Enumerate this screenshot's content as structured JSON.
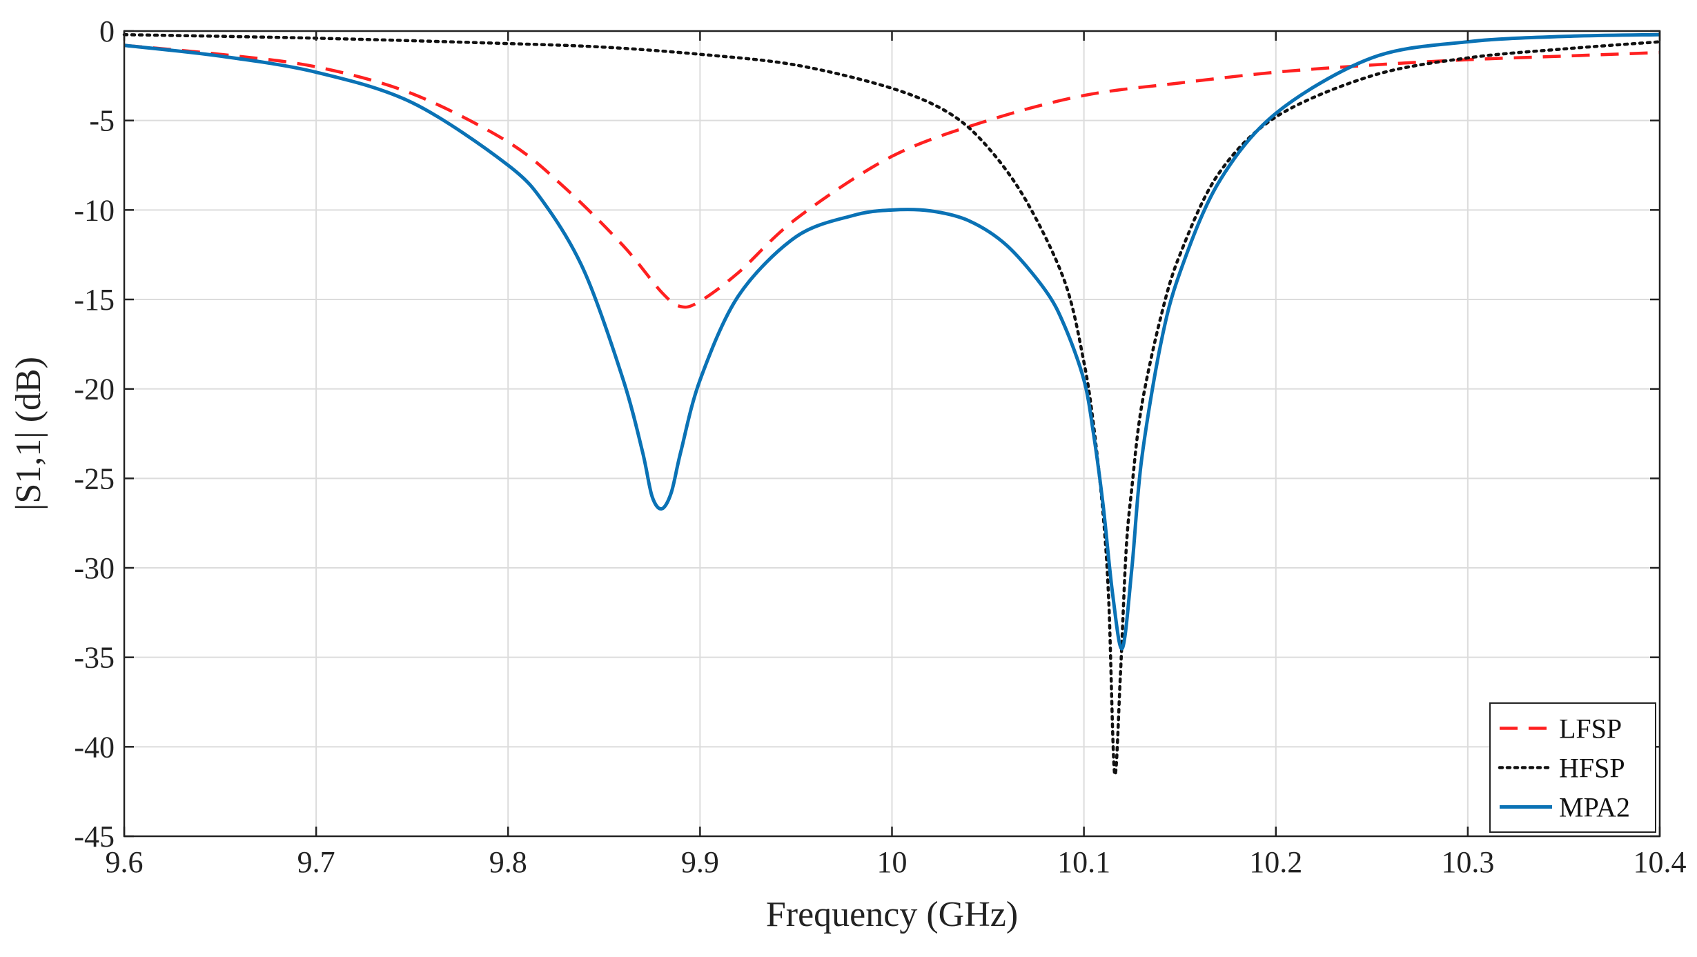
{
  "chart_data": {
    "type": "line",
    "title": "",
    "xlabel": "Frequency (GHz)",
    "ylabel": "|S1,1| (dB)",
    "xlim": [
      9.6,
      10.4
    ],
    "ylim": [
      -45,
      0
    ],
    "xticks": [
      9.6,
      9.7,
      9.8,
      9.9,
      10.0,
      10.1,
      10.2,
      10.3,
      10.4
    ],
    "xtick_labels": [
      "9.6",
      "9.7",
      "9.8",
      "9.9",
      "10",
      "10.1",
      "10.2",
      "10.3",
      "10.4"
    ],
    "yticks": [
      0,
      -5,
      -10,
      -15,
      -20,
      -25,
      -30,
      -35,
      -40,
      -45
    ],
    "ytick_labels": [
      "0",
      "-5",
      "-10",
      "-15",
      "-20",
      "-25",
      "-30",
      "-35",
      "-40",
      "-45"
    ],
    "grid": true,
    "legend_position": "bottom-right",
    "series": [
      {
        "name": "LFSP",
        "color": "#ff2020",
        "style": "dashed",
        "x": [
          9.6,
          9.65,
          9.7,
          9.75,
          9.8,
          9.83,
          9.86,
          9.88,
          9.89,
          9.9,
          9.92,
          9.95,
          10.0,
          10.05,
          10.1,
          10.15,
          10.2,
          10.25,
          10.3,
          10.35,
          10.4
        ],
        "y": [
          -0.8,
          -1.3,
          -2.0,
          -3.5,
          -6.2,
          -8.8,
          -12.0,
          -14.6,
          -15.4,
          -15.1,
          -13.5,
          -10.5,
          -7.0,
          -5.0,
          -3.6,
          -2.9,
          -2.3,
          -1.9,
          -1.6,
          -1.4,
          -1.2
        ]
      },
      {
        "name": "HFSP",
        "color": "#111111",
        "style": "dotted",
        "x": [
          9.6,
          9.7,
          9.8,
          9.85,
          9.9,
          9.95,
          10.0,
          10.03,
          10.05,
          10.07,
          10.09,
          10.1,
          10.105,
          10.11,
          10.113,
          10.116,
          10.119,
          10.122,
          10.125,
          10.13,
          10.14,
          10.15,
          10.17,
          10.2,
          10.25,
          10.3,
          10.35,
          10.4
        ],
        "y": [
          -0.2,
          -0.4,
          -0.7,
          -0.9,
          -1.3,
          -1.9,
          -3.2,
          -4.6,
          -6.5,
          -9.5,
          -14.0,
          -18.5,
          -22.0,
          -27.0,
          -32.0,
          -41.5,
          -36.0,
          -29.0,
          -25.5,
          -21.0,
          -16.0,
          -12.5,
          -8.0,
          -4.8,
          -2.5,
          -1.5,
          -1.0,
          -0.6
        ]
      },
      {
        "name": "MPA2",
        "color": "#0a72b5",
        "style": "solid",
        "x": [
          9.6,
          9.65,
          9.7,
          9.75,
          9.8,
          9.82,
          9.84,
          9.86,
          9.87,
          9.875,
          9.88,
          9.885,
          9.89,
          9.9,
          9.92,
          9.95,
          9.98,
          10.0,
          10.02,
          10.04,
          10.06,
          10.08,
          10.09,
          10.1,
          10.105,
          10.11,
          10.115,
          10.12,
          10.125,
          10.13,
          10.14,
          10.15,
          10.17,
          10.2,
          10.25,
          10.3,
          10.35,
          10.4
        ],
        "y": [
          -0.8,
          -1.4,
          -2.3,
          -4.0,
          -7.5,
          -9.8,
          -13.5,
          -19.5,
          -23.5,
          -26.0,
          -26.7,
          -25.8,
          -23.5,
          -19.5,
          -14.8,
          -11.5,
          -10.3,
          -10.0,
          -10.05,
          -10.6,
          -12.0,
          -14.5,
          -16.5,
          -19.5,
          -22.5,
          -26.5,
          -31.5,
          -34.5,
          -30.0,
          -24.0,
          -17.5,
          -13.5,
          -8.5,
          -4.6,
          -1.5,
          -0.6,
          -0.3,
          -0.2
        ]
      }
    ]
  }
}
